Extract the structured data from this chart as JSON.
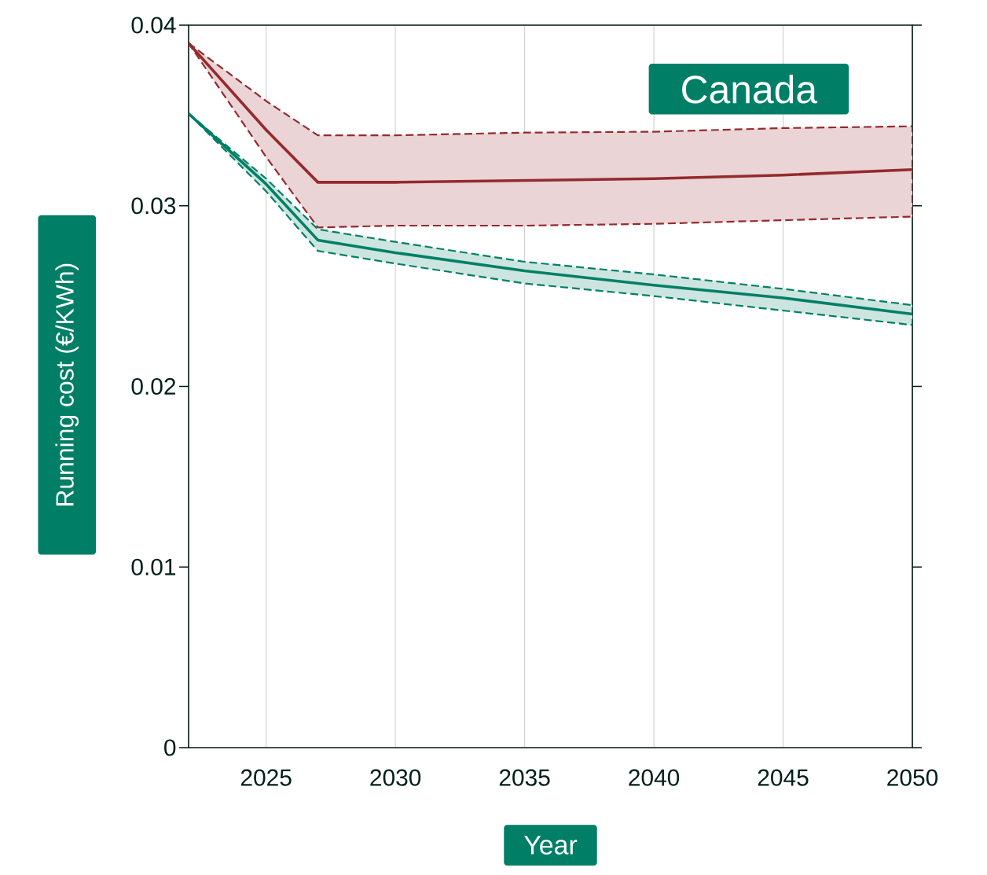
{
  "chart_data": {
    "type": "line",
    "title": "Canada",
    "xlabel": "Year",
    "ylabel": "Running cost (€/KWh)",
    "xlim": [
      2022,
      2050
    ],
    "xticks": [
      2025,
      2030,
      2035,
      2040,
      2045,
      2050
    ],
    "ylim": [
      0,
      0.04
    ],
    "yticks": [
      0,
      0.01,
      0.02,
      0.03,
      0.04
    ],
    "grid": "x",
    "line_style": "solid",
    "x": [
      2022,
      2025,
      2027,
      2030,
      2035,
      2040,
      2045,
      2050
    ],
    "series": [
      {
        "color": "#952a2e",
        "values": [
          0.039,
          0.0342,
          0.0313,
          0.0313,
          0.0314,
          0.0315,
          0.0317,
          0.032
        ],
        "lower": [
          0.039,
          0.0327,
          0.0288,
          0.0289,
          0.0289,
          0.029,
          0.0292,
          0.0294
        ],
        "upper": [
          0.039,
          0.0358,
          0.0339,
          0.0339,
          0.03405,
          0.0341,
          0.0343,
          0.0344
        ]
      },
      {
        "color": "#007f66",
        "values": [
          0.0351,
          0.0312,
          0.0281,
          0.0274,
          0.0264,
          0.0256,
          0.0249,
          0.024
        ],
        "lower": [
          0.0351,
          0.0308,
          0.0275,
          0.0268,
          0.0257,
          0.025,
          0.0242,
          0.0234
        ],
        "upper": [
          0.0351,
          0.0315,
          0.0287,
          0.028,
          0.0269,
          0.0262,
          0.0254,
          0.0245
        ]
      }
    ]
  }
}
